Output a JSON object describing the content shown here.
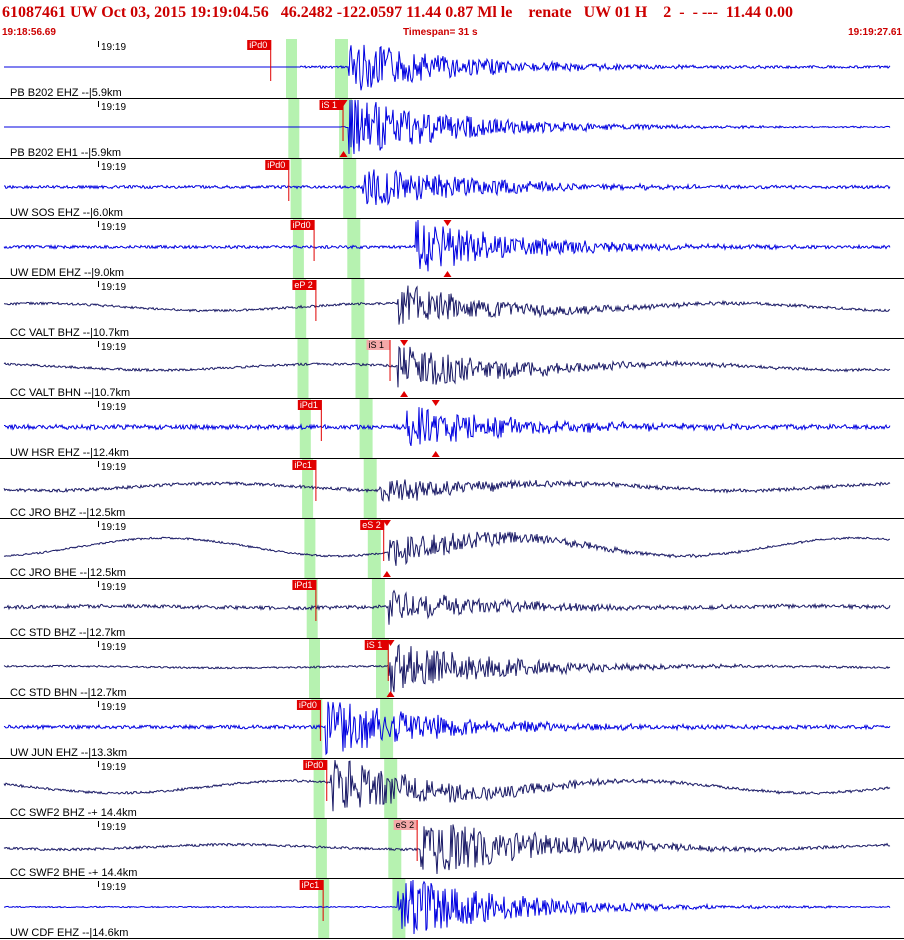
{
  "header": {
    "event_line": "61087461 UW Oct 03, 2015 19:19:04.56   46.2482 -122.0597 11.44 0.87 Ml le    renate   UW 01 H    2  -  - ---  11.44 0.00",
    "start_time": "19:18:56.69",
    "timespan": "Timespan=  31 s",
    "end_time": "19:19:27.61"
  },
  "colors": {
    "blue_trace": "#0000e0",
    "navy_trace": "#1a1a66",
    "pick": "#e00000",
    "pick_weak": "#f4a8a8",
    "window": "#b6f2b0",
    "header": "#cc0000"
  },
  "traces": [
    {
      "time_label": "19:19",
      "station": "PB B202 EHZ --|5.9km",
      "color": "blue",
      "flat_until": 0.33,
      "event_at": 0.385,
      "amp": 0.45,
      "noise": 0.04,
      "wave": 0,
      "pick": "iPd0",
      "pick_x": 0.3,
      "pick_weak": false,
      "tri": null
    },
    {
      "time_label": "19:19",
      "station": "PB B202 EH1 --|5.9km",
      "color": "blue",
      "flat_until": 0.378,
      "event_at": 0.385,
      "amp": 0.55,
      "noise": 0.02,
      "wave": 0,
      "pick": "iS 1",
      "pick_x": 0.38,
      "pick_weak": false,
      "tri": 0.38
    },
    {
      "time_label": "19:19",
      "station": "UW SOS EHZ --|6.0km",
      "color": "blue",
      "flat_until": 0,
      "event_at": 0.4,
      "amp": 0.38,
      "noise": 0.05,
      "wave": 0,
      "pick": "iPd0",
      "pick_x": 0.32,
      "pick_weak": false,
      "tri": null
    },
    {
      "time_label": "19:19",
      "station": "UW EDM EHZ --|9.0km",
      "color": "blue",
      "flat_until": 0,
      "event_at": 0.46,
      "amp": 0.45,
      "noise": 0.05,
      "wave": 0,
      "pick": "iPd0",
      "pick_x": 0.348,
      "pick_weak": false,
      "tri": 0.495
    },
    {
      "time_label": "19:19",
      "station": "CC VALT BHZ --|10.7km",
      "color": "navy",
      "flat_until": 0,
      "event_at": 0.44,
      "amp": 0.35,
      "noise": 0.04,
      "wave": 0.12,
      "pick": "eP 2",
      "pick_x": 0.35,
      "pick_weak": false,
      "tri": null
    },
    {
      "time_label": "19:19",
      "station": "CC VALT BHN --|10.7km",
      "color": "navy",
      "flat_until": 0,
      "event_at": 0.44,
      "amp": 0.4,
      "noise": 0.04,
      "wave": 0.1,
      "pick": "iS 1",
      "pick_x": 0.432,
      "pick_weak": true,
      "tri": 0.447
    },
    {
      "time_label": "19:19",
      "station": "UW HSR EHZ --|12.4km",
      "color": "blue",
      "flat_until": 0,
      "event_at": 0.45,
      "amp": 0.36,
      "noise": 0.08,
      "wave": 0,
      "pick": "iPd1",
      "pick_x": 0.356,
      "pick_weak": false,
      "tri": 0.482
    },
    {
      "time_label": "19:19",
      "station": "CC JRO BHZ --|12.5km",
      "color": "navy",
      "flat_until": 0,
      "event_at": 0.42,
      "amp": 0.22,
      "noise": 0.05,
      "wave": 0.12,
      "pick": "iPc1",
      "pick_x": 0.35,
      "pick_weak": false,
      "tri": null
    },
    {
      "time_label": "19:19",
      "station": "CC JRO BHE --|12.5km",
      "color": "navy",
      "flat_until": 0,
      "event_at": 0.43,
      "amp": 0.3,
      "noise": 0.03,
      "wave": 0.3,
      "pick": "eS 2",
      "pick_x": 0.425,
      "pick_weak": false,
      "tri": 0.428
    },
    {
      "time_label": "19:19",
      "station": "CC STD BHZ --|12.7km",
      "color": "navy",
      "flat_until": 0,
      "event_at": 0.43,
      "amp": 0.28,
      "noise": 0.06,
      "wave": 0.03,
      "pick": "iPd1",
      "pick_x": 0.35,
      "pick_weak": false,
      "tri": null
    },
    {
      "time_label": "19:19",
      "station": "CC STD BHN --|12.7km",
      "color": "navy",
      "flat_until": 0,
      "event_at": 0.43,
      "amp": 0.45,
      "noise": 0.03,
      "wave": 0.03,
      "pick": "iS 1",
      "pick_x": 0.43,
      "pick_weak": false,
      "tri": 0.432
    },
    {
      "time_label": "19:19",
      "station": "UW JUN EHZ --|13.3km",
      "color": "blue",
      "flat_until": 0,
      "event_at": 0.36,
      "amp": 0.5,
      "noise": 0.06,
      "wave": 0,
      "pick": "iPd0",
      "pick_x": 0.355,
      "pick_weak": false,
      "tri": null
    },
    {
      "time_label": "19:19",
      "station": "CC SWF2 BHZ -+ 14.4km",
      "color": "navy",
      "flat_until": 0,
      "event_at": 0.365,
      "amp": 0.5,
      "noise": 0.04,
      "wave": 0.2,
      "pick": "iPd0",
      "pick_x": 0.362,
      "pick_weak": false,
      "tri": null
    },
    {
      "time_label": "19:19",
      "station": "CC SWF2 BHE -+ 14.4km",
      "color": "navy",
      "flat_until": 0,
      "event_at": 0.465,
      "amp": 0.55,
      "noise": 0.04,
      "wave": 0.08,
      "pick": "eS 2",
      "pick_x": 0.462,
      "pick_weak": true,
      "tri": null
    },
    {
      "time_label": "19:19",
      "station": "UW CDF EHZ --|14.6km",
      "color": "blue",
      "flat_until": 0,
      "event_at": 0.44,
      "amp": 0.55,
      "noise": 0.02,
      "wave": 0,
      "pick": "iPc1",
      "pick_x": 0.358,
      "pick_weak": false,
      "tri": null
    }
  ]
}
